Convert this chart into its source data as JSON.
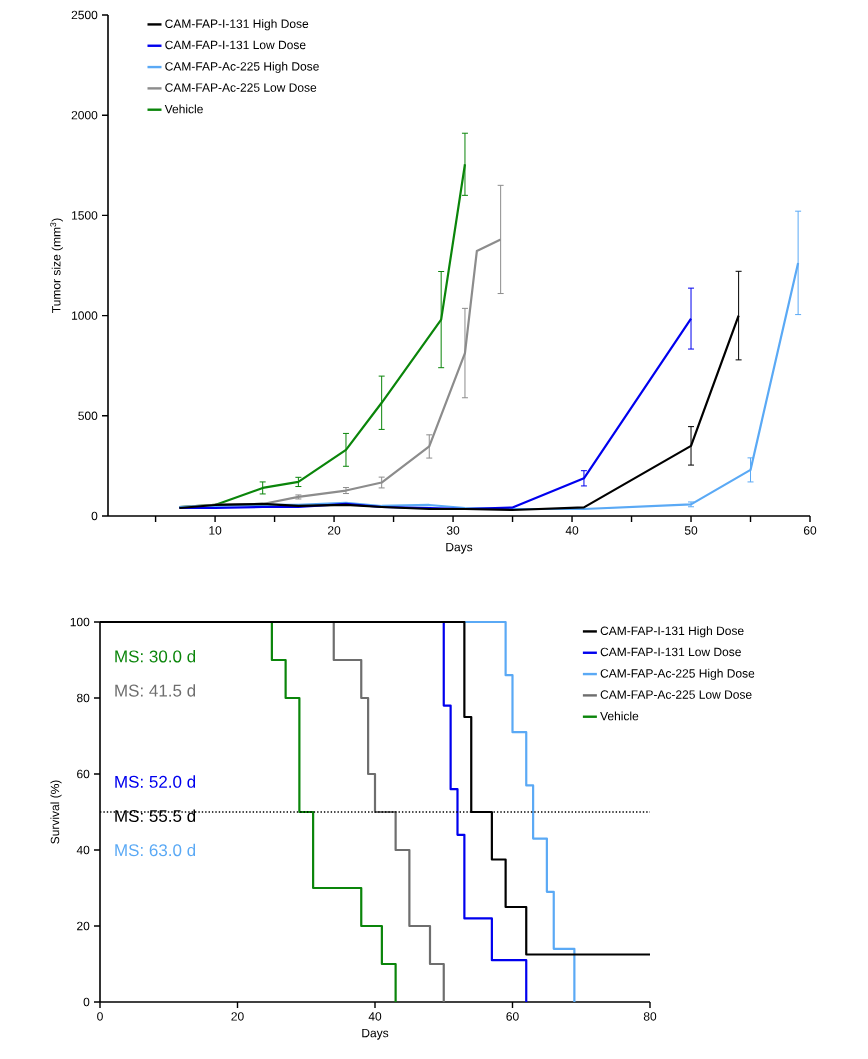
{
  "chart_data": [
    {
      "type": "line",
      "xlabel": "Days",
      "ylabel": "Tumor size (mm$^{3}$)",
      "xlim": [
        1,
        60
      ],
      "ylim": [
        0,
        2500
      ],
      "xticks": [
        {
          "value": 5,
          "label": null
        },
        10,
        {
          "value": 15,
          "label": null
        },
        20,
        {
          "value": 25,
          "label": null
        },
        30,
        {
          "value": 35,
          "label": null
        },
        40,
        {
          "value": 45,
          "label": null
        },
        50,
        {
          "value": 55,
          "label": null
        },
        60
      ],
      "yticks": [
        0,
        500,
        1000,
        1500,
        2000,
        2500
      ],
      "legend": "top left",
      "series": [
        {
          "name": "CAM-FAP-I-131 High Dose",
          "color": "#000000",
          "x": [
            7,
            10,
            14,
            17,
            21,
            24,
            28,
            31,
            35,
            41,
            50,
            54
          ],
          "values": [
            40,
            55,
            60,
            50,
            55,
            45,
            35,
            35,
            30,
            43,
            350,
            1000
          ],
          "errors": [
            null,
            null,
            null,
            null,
            null,
            null,
            null,
            null,
            null,
            null,
            96,
            221
          ]
        },
        {
          "name": "CAM-FAP-I-131 Low Dose",
          "color": "#0000ee",
          "x": [
            7,
            10,
            14,
            17,
            21,
            24,
            28,
            31,
            35,
            41,
            50
          ],
          "values": [
            40,
            40,
            45,
            45,
            60,
            45,
            40,
            35,
            42,
            188,
            985
          ],
          "errors": [
            null,
            null,
            null,
            null,
            null,
            null,
            null,
            null,
            null,
            38,
            152
          ]
        },
        {
          "name": "CAM-FAP-Ac-225 High Dose",
          "color": "#5aa9f5",
          "x": [
            7,
            10,
            14,
            17,
            21,
            24,
            28,
            31,
            35,
            41,
            50,
            55,
            59
          ],
          "values": [
            45,
            50,
            55,
            55,
            65,
            50,
            55,
            40,
            35,
            35,
            58,
            230,
            1263
          ],
          "errors": [
            null,
            null,
            null,
            null,
            null,
            null,
            null,
            null,
            null,
            null,
            12,
            60,
            258
          ]
        },
        {
          "name": "CAM-FAP-Ac-225 Low Dose",
          "color": "#8c8c8c",
          "x": [
            7,
            10,
            14,
            17,
            21,
            24,
            28,
            31,
            32,
            34
          ],
          "values": [
            45,
            55,
            60,
            95,
            127,
            167,
            347,
            813,
            1322,
            1380
          ],
          "errors": [
            null,
            null,
            null,
            10,
            15,
            27,
            58,
            223,
            null,
            270
          ]
        },
        {
          "name": "Vehicle",
          "color": "#0a850a",
          "x": [
            7,
            10,
            14,
            17,
            21,
            24,
            29,
            31
          ],
          "values": [
            45,
            55,
            140,
            170,
            330,
            565,
            980,
            1755
          ],
          "errors": [
            null,
            null,
            30,
            23,
            82,
            133,
            240,
            155
          ]
        }
      ]
    },
    {
      "type": "step",
      "xlabel": "Days",
      "ylabel": "Survival (%)",
      "xlim": [
        0,
        80
      ],
      "ylim": [
        0,
        100
      ],
      "xticks": [
        0,
        20,
        40,
        60,
        80
      ],
      "yticks": [
        0,
        20,
        40,
        60,
        80,
        100
      ],
      "legend": "top right",
      "ref_lines": [
        {
          "axis": "y",
          "value": 50,
          "line_style": "dotted",
          "color": "#000000"
        }
      ],
      "annotations": [
        "MS: 30.0 d",
        "MS: 41.5 d",
        "MS: 52.0 d",
        "MS: 55.5 d",
        "MS: 63.0 d"
      ],
      "series": [
        {
          "name": "CAM-FAP-I-131 High Dose",
          "color": "#000000",
          "x": [
            0,
            53,
            54,
            57,
            59,
            62,
            80
          ],
          "values": [
            100,
            75,
            50,
            37.5,
            25,
            12.5,
            12.5
          ]
        },
        {
          "name": "CAM-FAP-I-131 Low Dose",
          "color": "#0000ee",
          "x": [
            0,
            50,
            51,
            52,
            53,
            57,
            62
          ],
          "values": [
            100,
            78,
            56,
            44,
            22,
            11,
            0
          ]
        },
        {
          "name": "CAM-FAP-Ac-225 High Dose",
          "color": "#5aa9f5",
          "x": [
            0,
            59,
            60,
            62,
            63,
            65,
            66,
            69
          ],
          "values": [
            100,
            86,
            71,
            57,
            43,
            29,
            14,
            0
          ]
        },
        {
          "name": "CAM-FAP-Ac-225 Low Dose",
          "color": "#6e6e6e",
          "x": [
            0,
            34,
            38,
            39,
            40,
            43,
            45,
            48,
            50
          ],
          "values": [
            100,
            90,
            80,
            60,
            50,
            40,
            20,
            10,
            0
          ]
        },
        {
          "name": "Vehicle",
          "color": "#0a850a",
          "x": [
            0,
            25,
            27,
            29,
            31,
            38,
            41,
            43
          ],
          "values": [
            100,
            90,
            80,
            50,
            30,
            20,
            10,
            0
          ]
        }
      ]
    }
  ]
}
